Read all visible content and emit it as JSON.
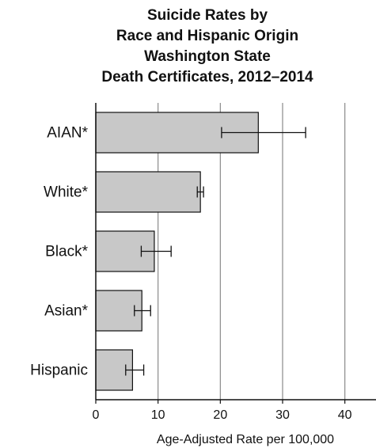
{
  "chart_data": {
    "type": "bar",
    "orientation": "horizontal",
    "title_lines": [
      "Suicide Rates by",
      "Race and Hispanic Origin",
      "Washington State",
      "Death Certificates, 2012–2014"
    ],
    "categories": [
      "AIAN*",
      "White*",
      "Black*",
      "Asian*",
      "Hispanic"
    ],
    "values": [
      26.1,
      16.8,
      9.4,
      7.4,
      5.9
    ],
    "error_low": [
      20.2,
      16.3,
      7.3,
      6.2,
      4.8
    ],
    "error_high": [
      33.7,
      17.3,
      12.1,
      8.8,
      7.7
    ],
    "xlabel": "Age-Adjusted Rate per 100,000",
    "ylabel": "",
    "xlim": [
      0,
      45
    ],
    "xticks": [
      0,
      10,
      20,
      30,
      40
    ],
    "grid": "vertical",
    "legend": "none",
    "colors": {
      "bar_fill": "#c8c8c8",
      "bar_stroke": "#111111",
      "grid": "#8a8a8a",
      "axis": "#111111",
      "error_bar": "#111111"
    }
  }
}
